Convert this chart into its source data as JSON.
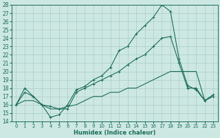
{
  "xlabel": "Humidex (Indice chaleur)",
  "bg_color": "#cde8e2",
  "line_color": "#1a6b5a",
  "grid_color": "#aaccc6",
  "ylim": [
    14,
    28
  ],
  "xlim": [
    -0.5,
    23.5
  ],
  "yticks": [
    14,
    15,
    16,
    17,
    18,
    19,
    20,
    21,
    22,
    23,
    24,
    25,
    26,
    27,
    28
  ],
  "xticks": [
    0,
    1,
    2,
    3,
    4,
    5,
    6,
    7,
    8,
    9,
    10,
    11,
    12,
    13,
    14,
    15,
    16,
    17,
    18,
    19,
    20,
    21,
    22,
    23
  ],
  "line1_x": [
    0,
    1,
    2,
    3,
    4,
    5,
    6,
    7,
    8,
    9,
    10,
    11,
    12,
    13,
    14,
    15,
    16,
    17,
    18,
    19,
    20,
    21,
    22,
    23
  ],
  "line1_y": [
    16,
    18,
    17,
    16,
    14.5,
    14.8,
    16.0,
    17.8,
    18.2,
    19.0,
    19.5,
    20.5,
    22.5,
    23.0,
    24.5,
    25.5,
    26.5,
    28.0,
    27.2,
    21.5,
    18.3,
    17.8,
    16.5,
    17.0
  ],
  "line2_x": [
    0,
    1,
    2,
    3,
    4,
    5,
    6,
    7,
    8,
    9,
    10,
    11,
    12,
    13,
    14,
    15,
    16,
    17,
    18,
    19,
    20,
    21,
    22,
    23
  ],
  "line2_y": [
    16,
    17.5,
    17.0,
    16.0,
    15.8,
    15.5,
    15.5,
    17.5,
    18.0,
    18.5,
    19.0,
    19.5,
    20.0,
    20.8,
    21.5,
    22.0,
    23.0,
    24.0,
    24.2,
    21.0,
    18.0,
    18.0,
    16.5,
    17.2
  ],
  "line3_x": [
    0,
    1,
    2,
    3,
    4,
    5,
    6,
    7,
    8,
    9,
    10,
    11,
    12,
    13,
    14,
    15,
    16,
    17,
    18,
    19,
    20,
    21,
    22,
    23
  ],
  "line3_y": [
    16,
    16.5,
    16.5,
    16.0,
    15.5,
    15.5,
    15.8,
    16.0,
    16.5,
    17.0,
    17.0,
    17.5,
    17.5,
    18.0,
    18.0,
    18.5,
    19.0,
    19.5,
    20.0,
    20.0,
    20.0,
    20.0,
    16.5,
    17.2
  ]
}
